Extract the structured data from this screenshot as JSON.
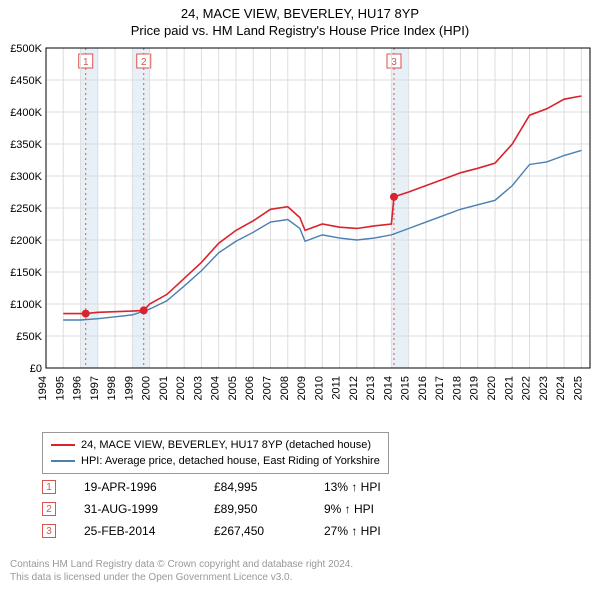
{
  "title_line1": "24, MACE VIEW, BEVERLEY, HU17 8YP",
  "title_line2": "Price paid vs. HM Land Registry's House Price Index (HPI)",
  "chart": {
    "type": "line",
    "plot_bg": "#ffffff",
    "grid_color": "#dddddd",
    "axis_color": "#000000",
    "tick_fontsize": 11,
    "y": {
      "min": 0,
      "max": 500000,
      "ticks": [
        0,
        50000,
        100000,
        150000,
        200000,
        250000,
        300000,
        350000,
        400000,
        450000,
        500000
      ],
      "labels": [
        "£0",
        "£50K",
        "£100K",
        "£150K",
        "£200K",
        "£250K",
        "£300K",
        "£350K",
        "£400K",
        "£450K",
        "£500K"
      ]
    },
    "x": {
      "min": 1994,
      "max": 2025.5,
      "ticks": [
        1994,
        1995,
        1996,
        1997,
        1998,
        1999,
        2000,
        2001,
        2002,
        2003,
        2004,
        2005,
        2006,
        2007,
        2008,
        2009,
        2010,
        2011,
        2012,
        2013,
        2014,
        2015,
        2016,
        2017,
        2018,
        2019,
        2020,
        2021,
        2022,
        2023,
        2024,
        2025
      ],
      "labels": [
        "1994",
        "1995",
        "1996",
        "1997",
        "1998",
        "1999",
        "2000",
        "2001",
        "2002",
        "2003",
        "2004",
        "2005",
        "2006",
        "2007",
        "2008",
        "2009",
        "2010",
        "2011",
        "2012",
        "2013",
        "2014",
        "2015",
        "2016",
        "2017",
        "2018",
        "2019",
        "2020",
        "2021",
        "2022",
        "2023",
        "2024",
        "2025"
      ]
    },
    "sale_bands": [
      {
        "year": 1996.3,
        "label": "1"
      },
      {
        "year": 1999.66,
        "label": "2"
      },
      {
        "year": 2014.15,
        "label": "3"
      }
    ],
    "band_fill": "#d6e4f0",
    "band_line": "#d9534f",
    "band_label_border": "#d9534f",
    "band_label_text": "#d9534f",
    "series": [
      {
        "name": "property",
        "color": "#d9232d",
        "width": 1.6,
        "data": [
          [
            1995,
            85000
          ],
          [
            1996,
            85000
          ],
          [
            1996.3,
            84995
          ],
          [
            1997,
            87000
          ],
          [
            1998,
            88000
          ],
          [
            1999,
            89000
          ],
          [
            1999.66,
            89950
          ],
          [
            2000,
            100000
          ],
          [
            2001,
            115000
          ],
          [
            2002,
            140000
          ],
          [
            2003,
            165000
          ],
          [
            2004,
            195000
          ],
          [
            2005,
            215000
          ],
          [
            2006,
            230000
          ],
          [
            2007,
            248000
          ],
          [
            2008,
            252000
          ],
          [
            2008.7,
            235000
          ],
          [
            2009,
            215000
          ],
          [
            2010,
            225000
          ],
          [
            2011,
            220000
          ],
          [
            2012,
            218000
          ],
          [
            2013,
            222000
          ],
          [
            2014,
            225000
          ],
          [
            2014.15,
            267450
          ],
          [
            2015,
            275000
          ],
          [
            2016,
            285000
          ],
          [
            2017,
            295000
          ],
          [
            2018,
            305000
          ],
          [
            2019,
            312000
          ],
          [
            2020,
            320000
          ],
          [
            2021,
            350000
          ],
          [
            2022,
            395000
          ],
          [
            2023,
            405000
          ],
          [
            2024,
            420000
          ],
          [
            2025,
            425000
          ]
        ]
      },
      {
        "name": "hpi",
        "color": "#4a7fb0",
        "width": 1.4,
        "data": [
          [
            1995,
            75000
          ],
          [
            1996,
            75000
          ],
          [
            1997,
            77000
          ],
          [
            1998,
            80000
          ],
          [
            1999,
            83000
          ],
          [
            2000,
            92000
          ],
          [
            2001,
            105000
          ],
          [
            2002,
            128000
          ],
          [
            2003,
            152000
          ],
          [
            2004,
            180000
          ],
          [
            2005,
            198000
          ],
          [
            2006,
            212000
          ],
          [
            2007,
            228000
          ],
          [
            2008,
            232000
          ],
          [
            2008.7,
            218000
          ],
          [
            2009,
            198000
          ],
          [
            2010,
            208000
          ],
          [
            2011,
            203000
          ],
          [
            2012,
            200000
          ],
          [
            2013,
            203000
          ],
          [
            2014,
            208000
          ],
          [
            2015,
            218000
          ],
          [
            2016,
            228000
          ],
          [
            2017,
            238000
          ],
          [
            2018,
            248000
          ],
          [
            2019,
            255000
          ],
          [
            2020,
            262000
          ],
          [
            2021,
            285000
          ],
          [
            2022,
            318000
          ],
          [
            2023,
            322000
          ],
          [
            2024,
            332000
          ],
          [
            2025,
            340000
          ]
        ]
      }
    ],
    "sale_markers": [
      {
        "year": 1996.3,
        "price": 84995
      },
      {
        "year": 1999.66,
        "price": 89950
      },
      {
        "year": 2014.15,
        "price": 267450
      }
    ],
    "marker_color": "#d9232d",
    "marker_radius": 4
  },
  "legend": {
    "items": [
      {
        "color": "#d9232d",
        "label": "24, MACE VIEW, BEVERLEY, HU17 8YP (detached house)"
      },
      {
        "color": "#4a7fb0",
        "label": "HPI: Average price, detached house, East Riding of Yorkshire"
      }
    ]
  },
  "sales_table": {
    "marker_border": "#d9534f",
    "marker_text": "#d9534f",
    "rows": [
      {
        "n": "1",
        "date": "19-APR-1996",
        "price": "£84,995",
        "pct": "13% ↑ HPI"
      },
      {
        "n": "2",
        "date": "31-AUG-1999",
        "price": "£89,950",
        "pct": "9% ↑ HPI"
      },
      {
        "n": "3",
        "date": "25-FEB-2014",
        "price": "£267,450",
        "pct": "27% ↑ HPI"
      }
    ]
  },
  "footer_line1": "Contains HM Land Registry data © Crown copyright and database right 2024.",
  "footer_line2": "This data is licensed under the Open Government Licence v3.0."
}
